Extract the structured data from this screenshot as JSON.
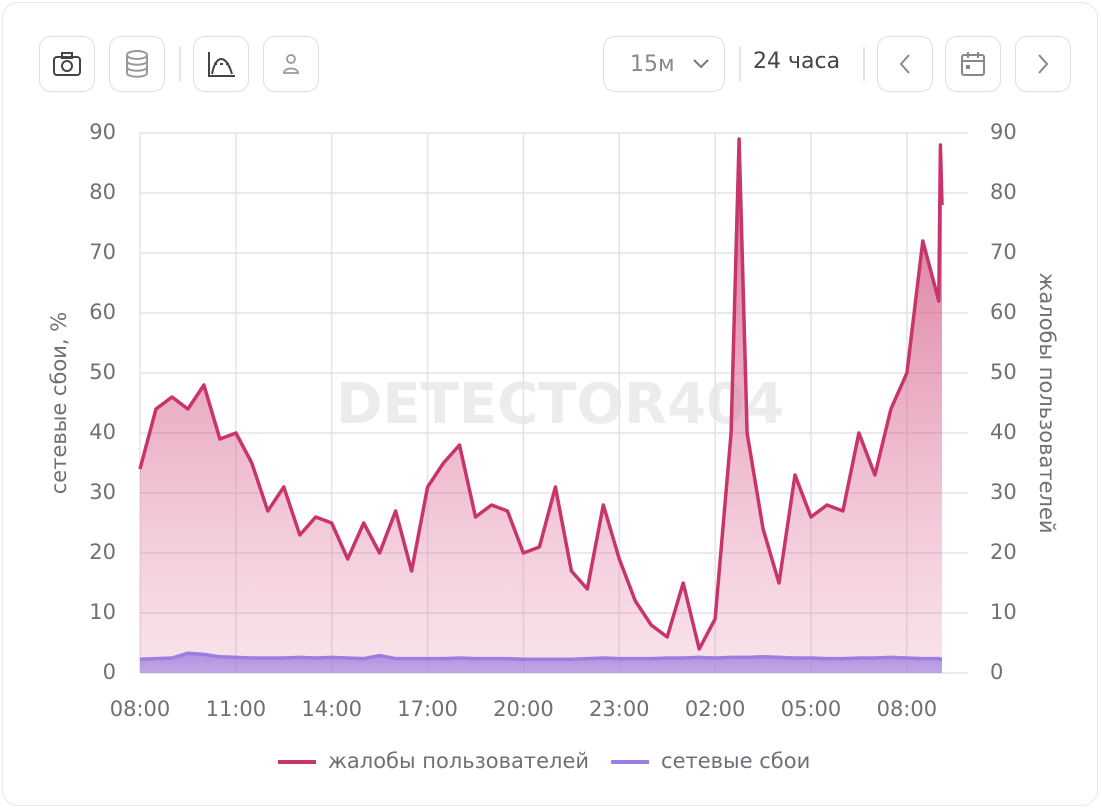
{
  "toolbar": {
    "interval": "15м",
    "range": "24 часа"
  },
  "chart_data": {
    "type": "line",
    "watermark": "DETECTOR404",
    "y_label": "сетевые сбои, %",
    "y2_label": "жалобы пользователей",
    "xlim": [
      8,
      33.1
    ],
    "xticks": [
      {
        "value": 8,
        "label": "08:00"
      },
      {
        "value": 11,
        "label": "11:00"
      },
      {
        "value": 14,
        "label": "14:00"
      },
      {
        "value": 17,
        "label": "17:00"
      },
      {
        "value": 20,
        "label": "20:00"
      },
      {
        "value": 23,
        "label": "23:00"
      },
      {
        "value": 26,
        "label": "02:00"
      },
      {
        "value": 29,
        "label": "05:00"
      },
      {
        "value": 32,
        "label": "08:00"
      }
    ],
    "ylim": [
      0,
      90
    ],
    "yticks": [
      0,
      10,
      20,
      30,
      40,
      50,
      60,
      70,
      80,
      90
    ],
    "y2lim": [
      0,
      90
    ],
    "y2ticks": [
      0,
      10,
      20,
      30,
      40,
      50,
      60,
      70,
      80,
      90
    ],
    "grid": true,
    "x": [
      8,
      8.5,
      9,
      9.5,
      10,
      10.5,
      11,
      11.5,
      12,
      12.5,
      13,
      13.5,
      14,
      14.5,
      15,
      15.5,
      16,
      16.5,
      17,
      17.5,
      18,
      18.5,
      19,
      19.5,
      20,
      20.5,
      21,
      21.5,
      22,
      22.5,
      23,
      23.5,
      24,
      24.5,
      25,
      25.5,
      26,
      26.5,
      26.75,
      27,
      27.5,
      28,
      28.5,
      29,
      29.5,
      30,
      30.5,
      31,
      31.5,
      32,
      32.5,
      33,
      33.05,
      33.1
    ],
    "series": [
      {
        "name": "жалобы пользователей",
        "color": "#c8356a",
        "axis": "y2",
        "values": [
          34,
          44,
          46,
          44,
          48,
          39,
          40,
          35,
          27,
          31,
          23,
          26,
          25,
          19,
          25,
          20,
          27,
          17,
          31,
          35,
          38,
          26,
          28,
          27,
          20,
          21,
          31,
          17,
          14,
          28,
          19,
          12,
          8,
          6,
          15,
          4,
          9,
          40,
          89,
          40,
          24,
          15,
          33,
          26,
          28,
          27,
          40,
          33,
          44,
          50,
          72,
          62,
          88,
          78
        ]
      },
      {
        "name": "сетевые сбои",
        "color": "#9b7fe0",
        "axis": "y",
        "values": [
          2.3,
          2.4,
          2.5,
          3.3,
          3.1,
          2.7,
          2.6,
          2.5,
          2.5,
          2.5,
          2.6,
          2.5,
          2.6,
          2.5,
          2.4,
          2.9,
          2.4,
          2.4,
          2.4,
          2.4,
          2.5,
          2.4,
          2.4,
          2.4,
          2.3,
          2.3,
          2.3,
          2.3,
          2.4,
          2.5,
          2.4,
          2.4,
          2.4,
          2.5,
          2.5,
          2.6,
          2.5,
          2.6,
          2.6,
          2.6,
          2.7,
          2.6,
          2.5,
          2.5,
          2.4,
          2.4,
          2.5,
          2.5,
          2.6,
          2.5,
          2.4,
          2.4,
          2.3,
          2.3
        ]
      }
    ]
  }
}
